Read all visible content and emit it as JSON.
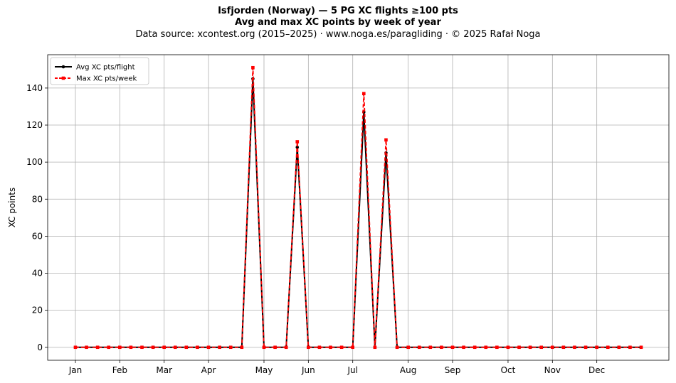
{
  "chart_data": {
    "type": "line",
    "title": "Isfjorden (Norway)  —  5 PG XC flights ≥100 pts",
    "subtitle": "Avg and max XC points by week of year",
    "source": "Data source: xcontest.org (2015–2025)  ·  www.noga.es/paragliding  ·  © 2025 Rafał Noga",
    "xlabel": "",
    "ylabel": "XC points",
    "x_unit": "week of year",
    "xlim": [
      -1.5,
      54.5
    ],
    "ylim": [
      -7,
      158
    ],
    "grid": true,
    "legend_position": "top-left",
    "x_ticks": [
      {
        "label": "Jan",
        "week": 1
      },
      {
        "label": "Feb",
        "week": 5
      },
      {
        "label": "Mar",
        "week": 9
      },
      {
        "label": "Apr",
        "week": 13
      },
      {
        "label": "May",
        "week": 18
      },
      {
        "label": "Jun",
        "week": 22
      },
      {
        "label": "Jul",
        "week": 26
      },
      {
        "label": "Aug",
        "week": 31
      },
      {
        "label": "Sep",
        "week": 35
      },
      {
        "label": "Oct",
        "week": 40
      },
      {
        "label": "Nov",
        "week": 44
      },
      {
        "label": "Dec",
        "week": 48
      }
    ],
    "y_ticks": [
      0,
      20,
      40,
      60,
      80,
      100,
      120,
      140
    ],
    "x": [
      1,
      2,
      3,
      4,
      5,
      6,
      7,
      8,
      9,
      10,
      11,
      12,
      13,
      14,
      15,
      16,
      17,
      18,
      19,
      20,
      21,
      22,
      23,
      24,
      25,
      26,
      27,
      28,
      29,
      30,
      31,
      32,
      33,
      34,
      35,
      36,
      37,
      38,
      39,
      40,
      41,
      42,
      43,
      44,
      45,
      46,
      47,
      48,
      49,
      50,
      51,
      52
    ],
    "series": [
      {
        "name": "Avg XC pts/flight",
        "color": "#000000",
        "marker": "circle",
        "line_style": "solid",
        "values": [
          0,
          0,
          0,
          0,
          0,
          0,
          0,
          0,
          0,
          0,
          0,
          0,
          0,
          0,
          0,
          0,
          145,
          0,
          0,
          0,
          108,
          0,
          0,
          0,
          0,
          0,
          127,
          0,
          105,
          0,
          0,
          0,
          0,
          0,
          0,
          0,
          0,
          0,
          0,
          0,
          0,
          0,
          0,
          0,
          0,
          0,
          0,
          0,
          0,
          0,
          0,
          0
        ]
      },
      {
        "name": "Max XC pts/week",
        "color": "#ff0000",
        "marker": "square",
        "line_style": "dashed",
        "values": [
          0,
          0,
          0,
          0,
          0,
          0,
          0,
          0,
          0,
          0,
          0,
          0,
          0,
          0,
          0,
          0,
          151,
          0,
          0,
          0,
          111,
          0,
          0,
          0,
          0,
          0,
          137,
          0,
          112,
          0,
          0,
          0,
          0,
          0,
          0,
          0,
          0,
          0,
          0,
          0,
          0,
          0,
          0,
          0,
          0,
          0,
          0,
          0,
          0,
          0,
          0,
          0
        ]
      }
    ]
  }
}
